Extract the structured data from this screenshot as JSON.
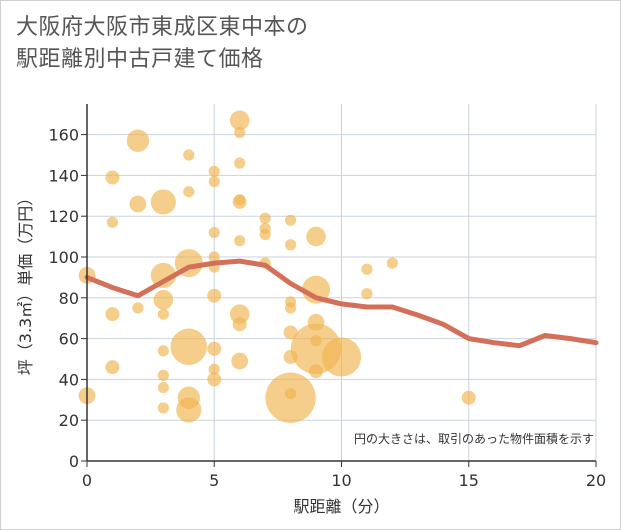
{
  "chart_data": {
    "type": "scatter",
    "title": "大阪府大阪市東成区東中本の\n駅距離別中古戸建て価格",
    "xlabel": "駅距離（分）",
    "ylabel": "坪（3.3㎡）単価（万円）",
    "xlim": [
      0,
      20
    ],
    "ylim": [
      0,
      175
    ],
    "xticks": [
      0,
      5,
      10,
      15,
      20
    ],
    "yticks": [
      0,
      20,
      40,
      60,
      80,
      100,
      120,
      140,
      160
    ],
    "grid": true,
    "note": "円の大きさは、取引のあった物件面積を示す",
    "colors": {
      "bubble": "#f0b44e",
      "trend": "#d4705a",
      "grid": "#c9d3de",
      "axis": "#333333"
    },
    "points": [
      {
        "x": 0,
        "y": 91,
        "s": 6
      },
      {
        "x": 0,
        "y": 32,
        "s": 6
      },
      {
        "x": 1,
        "y": 139,
        "s": 5
      },
      {
        "x": 1,
        "y": 117,
        "s": 4
      },
      {
        "x": 1,
        "y": 72,
        "s": 5
      },
      {
        "x": 1,
        "y": 46,
        "s": 5
      },
      {
        "x": 2,
        "y": 157,
        "s": 8
      },
      {
        "x": 2,
        "y": 126,
        "s": 6
      },
      {
        "x": 2,
        "y": 75,
        "s": 4
      },
      {
        "x": 3,
        "y": 127,
        "s": 9
      },
      {
        "x": 3,
        "y": 91,
        "s": 9
      },
      {
        "x": 3,
        "y": 79,
        "s": 7
      },
      {
        "x": 3,
        "y": 72,
        "s": 4
      },
      {
        "x": 3,
        "y": 54,
        "s": 4
      },
      {
        "x": 3,
        "y": 42,
        "s": 4
      },
      {
        "x": 3,
        "y": 36,
        "s": 4
      },
      {
        "x": 3,
        "y": 26,
        "s": 4
      },
      {
        "x": 4,
        "y": 150,
        "s": 4
      },
      {
        "x": 4,
        "y": 132,
        "s": 4
      },
      {
        "x": 4,
        "y": 97,
        "s": 10
      },
      {
        "x": 4,
        "y": 56,
        "s": 13
      },
      {
        "x": 4,
        "y": 31,
        "s": 8
      },
      {
        "x": 4,
        "y": 25,
        "s": 9
      },
      {
        "x": 5,
        "y": 142,
        "s": 4
      },
      {
        "x": 5,
        "y": 137,
        "s": 4
      },
      {
        "x": 5,
        "y": 112,
        "s": 4
      },
      {
        "x": 5,
        "y": 100,
        "s": 4
      },
      {
        "x": 5,
        "y": 95,
        "s": 4
      },
      {
        "x": 5,
        "y": 81,
        "s": 5
      },
      {
        "x": 5,
        "y": 55,
        "s": 5
      },
      {
        "x": 5,
        "y": 45,
        "s": 4
      },
      {
        "x": 5,
        "y": 40,
        "s": 5
      },
      {
        "x": 6,
        "y": 167,
        "s": 7
      },
      {
        "x": 6,
        "y": 161,
        "s": 4
      },
      {
        "x": 6,
        "y": 146,
        "s": 4
      },
      {
        "x": 6,
        "y": 128,
        "s": 4
      },
      {
        "x": 6,
        "y": 127,
        "s": 5
      },
      {
        "x": 6,
        "y": 108,
        "s": 4
      },
      {
        "x": 6,
        "y": 72,
        "s": 7
      },
      {
        "x": 6,
        "y": 67,
        "s": 5
      },
      {
        "x": 6,
        "y": 49,
        "s": 6
      },
      {
        "x": 7,
        "y": 119,
        "s": 4
      },
      {
        "x": 7,
        "y": 114,
        "s": 4
      },
      {
        "x": 7,
        "y": 111,
        "s": 4
      },
      {
        "x": 7,
        "y": 97,
        "s": 4
      },
      {
        "x": 8,
        "y": 118,
        "s": 4
      },
      {
        "x": 8,
        "y": 106,
        "s": 4
      },
      {
        "x": 8,
        "y": 78,
        "s": 4
      },
      {
        "x": 8,
        "y": 75,
        "s": 4
      },
      {
        "x": 8,
        "y": 63,
        "s": 5
      },
      {
        "x": 8,
        "y": 51,
        "s": 5
      },
      {
        "x": 8,
        "y": 31,
        "s": 18
      },
      {
        "x": 8,
        "y": 33,
        "s": 4
      },
      {
        "x": 9,
        "y": 110,
        "s": 7
      },
      {
        "x": 9,
        "y": 84,
        "s": 10
      },
      {
        "x": 9,
        "y": 68,
        "s": 6
      },
      {
        "x": 9,
        "y": 59,
        "s": 4
      },
      {
        "x": 9,
        "y": 55,
        "s": 18
      },
      {
        "x": 9,
        "y": 44,
        "s": 5
      },
      {
        "x": 10,
        "y": 51,
        "s": 14
      },
      {
        "x": 11,
        "y": 94,
        "s": 4
      },
      {
        "x": 11,
        "y": 82,
        "s": 4
      },
      {
        "x": 12,
        "y": 97,
        "s": 4
      },
      {
        "x": 15,
        "y": 31,
        "s": 5
      }
    ],
    "trend": [
      {
        "x": 0,
        "y": 90
      },
      {
        "x": 1,
        "y": 85
      },
      {
        "x": 2,
        "y": 81
      },
      {
        "x": 3,
        "y": 88
      },
      {
        "x": 4,
        "y": 95
      },
      {
        "x": 5,
        "y": 97
      },
      {
        "x": 6,
        "y": 98
      },
      {
        "x": 7,
        "y": 96
      },
      {
        "x": 8,
        "y": 87
      },
      {
        "x": 9,
        "y": 80
      },
      {
        "x": 10,
        "y": 77
      },
      {
        "x": 11,
        "y": 75.5
      },
      {
        "x": 12,
        "y": 75.5
      },
      {
        "x": 13,
        "y": 71.5
      },
      {
        "x": 14,
        "y": 67
      },
      {
        "x": 15,
        "y": 60
      },
      {
        "x": 16,
        "y": 58
      },
      {
        "x": 17,
        "y": 56.5
      },
      {
        "x": 18,
        "y": 61.5
      },
      {
        "x": 19,
        "y": 60
      },
      {
        "x": 20,
        "y": 58
      }
    ]
  }
}
